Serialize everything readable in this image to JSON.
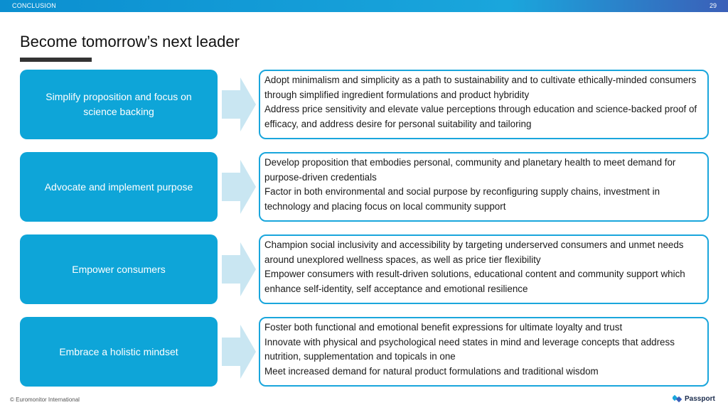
{
  "header": {
    "section": "CONCLUSION",
    "page_number": "29"
  },
  "title": "Become tomorrow’s next leader",
  "rows": [
    {
      "label": "Simplify proposition and focus on science backing",
      "points": [
        "Adopt minimalism and simplicity as a path to sustainability and to cultivate ethically-minded consumers through simplified ingredient formulations and product hybridity",
        "Address price sensitivity and elevate value perceptions through education and science-backed proof of efficacy, and address desire for personal suitability and tailoring"
      ]
    },
    {
      "label": "Advocate and implement purpose",
      "points": [
        "Develop proposition that embodies personal, community and planetary health to meet demand for purpose-driven credentials",
        "Factor in both environmental and social purpose by reconfiguring supply chains, investment in technology and placing focus on local community support"
      ]
    },
    {
      "label": "Empower consumers",
      "points": [
        "Champion social inclusivity and accessibility by targeting underserved consumers and unmet needs around unexplored wellness spaces, as well as price tier flexibility",
        "Empower consumers with result-driven solutions, educational content and community support which enhance self-identity, self acceptance and emotional resilience"
      ]
    },
    {
      "label": "Embrace a holistic mindset",
      "points": [
        "Foster both functional and emotional benefit expressions for ultimate loyalty and trust",
        "Innovate with physical and psychological need states in mind and leverage concepts that address nutrition, supplementation and topicals in one",
        "Meet increased demand for natural product formulations and traditional wisdom"
      ]
    }
  ],
  "footer": {
    "copyright": "© Euromonitor International",
    "brand": "Passport"
  },
  "colors": {
    "accent": "#0ea5d8",
    "arrow": "#c9e6f2",
    "topbar": "#0b8fd0"
  }
}
